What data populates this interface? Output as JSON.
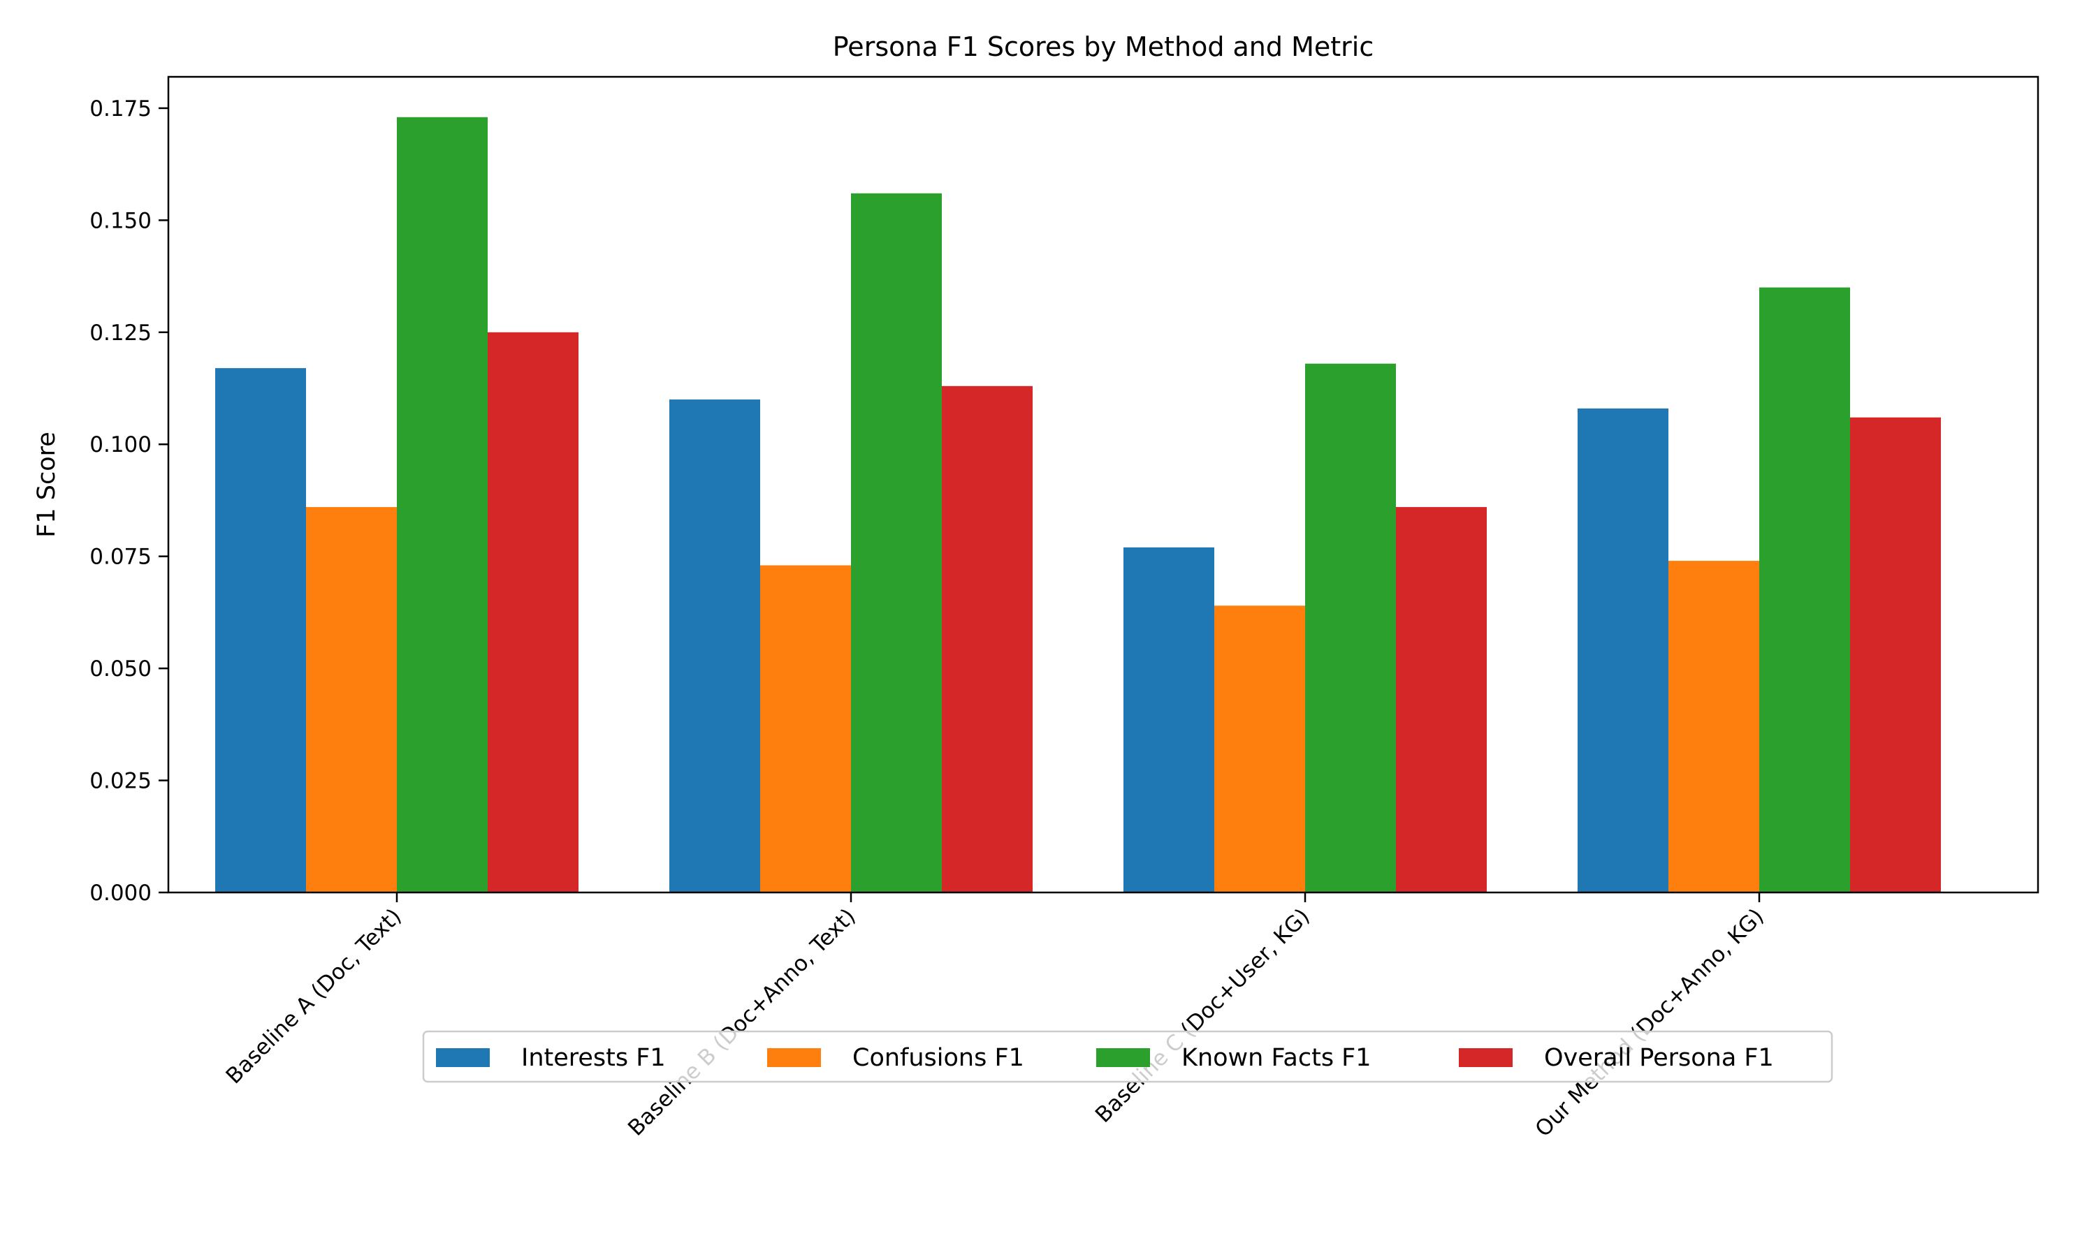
{
  "chart_data": {
    "type": "bar",
    "title": "Persona F1 Scores by Method and Metric",
    "xlabel": "",
    "ylabel": "F1 Score",
    "ylim": [
      0,
      0.182
    ],
    "yticks": [
      "0.000",
      "0.025",
      "0.050",
      "0.075",
      "0.100",
      "0.125",
      "0.150",
      "0.175"
    ],
    "categories": [
      "Baseline A (Doc, Text)",
      "Baseline B (Doc+Anno, Text)",
      "Baseline C (Doc+User, KG)",
      "Our Method (Doc+Anno, KG)"
    ],
    "series": [
      {
        "name": "Interests F1",
        "color": "#1f77b4",
        "values": [
          0.117,
          0.11,
          0.077,
          0.108
        ]
      },
      {
        "name": "Confusions F1",
        "color": "#ff7f0e",
        "values": [
          0.086,
          0.073,
          0.064,
          0.074
        ]
      },
      {
        "name": "Known Facts F1",
        "color": "#2ca02c",
        "values": [
          0.173,
          0.156,
          0.118,
          0.135
        ]
      },
      {
        "name": "Overall Persona F1",
        "color": "#d62728",
        "values": [
          0.125,
          0.113,
          0.086,
          0.106
        ]
      }
    ],
    "legend_position": "bottom-center",
    "grid": false
  }
}
